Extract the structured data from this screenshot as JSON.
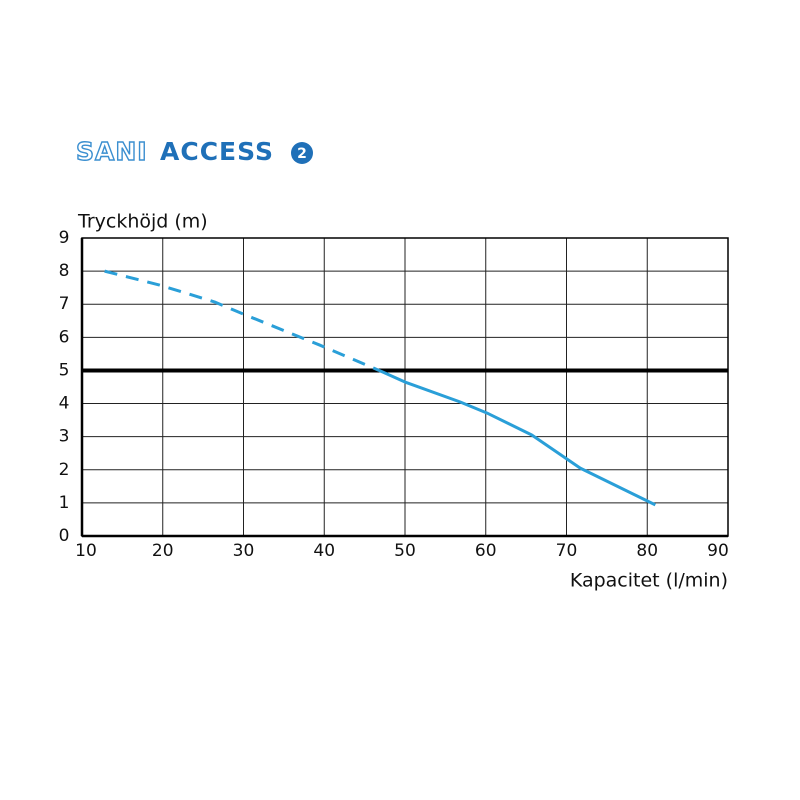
{
  "logo": {
    "brand": "SANI",
    "product": "ACCESS",
    "badge": "2"
  },
  "chart_data": {
    "type": "line",
    "y_label": "Tryckhöjd (m)",
    "x_label": "Kapacitet (l/min)",
    "xlim": [
      10,
      90
    ],
    "ylim": [
      0,
      9
    ],
    "xticks": [
      10,
      20,
      30,
      40,
      50,
      60,
      70,
      80,
      90
    ],
    "yticks": [
      0,
      1,
      2,
      3,
      4,
      5,
      6,
      7,
      8,
      9
    ],
    "grid": true,
    "hline": {
      "value": 5,
      "color": "#000000"
    },
    "series": [
      {
        "color": "#2a9fd8",
        "dashed": true,
        "x": [
          12.8,
          19.6,
          26.4,
          30,
          39.4,
          46.8
        ],
        "values": [
          8.0,
          7.58,
          7.07,
          6.7,
          5.77,
          5.0
        ]
      },
      {
        "color": "#2a9fd8",
        "dashed": false,
        "x": [
          46.8,
          50,
          56.8,
          60.1,
          65.7,
          71.7,
          81
        ],
        "values": [
          5.0,
          4.65,
          4.05,
          3.72,
          3.05,
          2.05,
          0.94
        ]
      }
    ]
  }
}
